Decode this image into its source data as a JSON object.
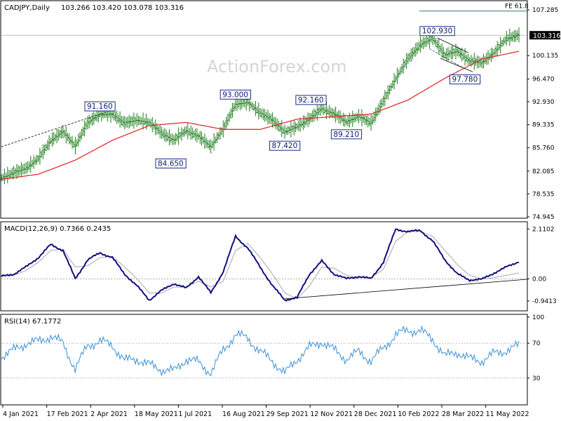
{
  "header": {
    "symbol_label": "CADJPY,Daily",
    "ohlc": "103.266 103.420 103.078 103.316"
  },
  "watermark": "ActionForex.com",
  "colors": {
    "bar": "#1a7a1a",
    "ma": "#e02020",
    "macd": "#10107e",
    "signal": "#a8a8a8",
    "rsi": "#3a8fd8",
    "label_border": "#1a2a8a",
    "price_tag_bg": "#000000"
  },
  "chart_data": [
    {
      "type": "line",
      "title": "CADJPY,Daily",
      "y_axis_ticks": [
        "107.285",
        "103.316",
        "100.135",
        "96.470",
        "92.930",
        "89.335",
        "85.760",
        "82.085",
        "78.535",
        "74.945"
      ],
      "ylim": [
        74.945,
        107.285
      ],
      "x_axis_labels": [
        "4 Jan 2021",
        "17 Feb 2021",
        "2 Apr 2021",
        "18 May 2021",
        "1 Jul 2021",
        "16 Aug 2021",
        "29 Sep 2021",
        "12 Nov 2021",
        "28 Dec 2021",
        "10 Feb 2022",
        "28 Mar 2022",
        "11 May 2022"
      ],
      "series": [
        {
          "name": "Close",
          "x": [
            0,
            8,
            16,
            24,
            32,
            40,
            48,
            56,
            64,
            72,
            80,
            88,
            96,
            104,
            112,
            120,
            128,
            136,
            144,
            152,
            160,
            168,
            176,
            184,
            192,
            200,
            208,
            216,
            224,
            232,
            240,
            248,
            256,
            264,
            272,
            280,
            288,
            296,
            304,
            312,
            320,
            328,
            336
          ],
          "values": [
            81.0,
            81.8,
            82.5,
            84.0,
            86.8,
            88.2,
            86.0,
            89.6,
            91.0,
            90.9,
            89.6,
            90.0,
            89.7,
            88.0,
            86.9,
            88.4,
            87.5,
            85.9,
            88.6,
            92.5,
            92.8,
            91.2,
            90.0,
            88.2,
            89.0,
            90.2,
            91.8,
            91.0,
            89.8,
            90.6,
            89.6,
            93.0,
            96.5,
            99.6,
            101.8,
            102.8,
            100.2,
            100.8,
            99.3,
            99.0,
            100.6,
            102.8,
            103.316
          ]
        },
        {
          "name": "55-day MA",
          "x": [
            0,
            24,
            48,
            72,
            96,
            120,
            144,
            168,
            192,
            216,
            240,
            264,
            288,
            312,
            336
          ],
          "values": [
            80.8,
            81.6,
            83.8,
            86.9,
            89.2,
            89.7,
            88.6,
            88.6,
            90.2,
            90.6,
            91.0,
            93.2,
            96.6,
            99.6,
            100.8
          ]
        }
      ],
      "annotations": [
        {
          "label": "91.160",
          "x": 64,
          "value": 91.16
        },
        {
          "label": "84.650",
          "x": 110,
          "value": 84.65
        },
        {
          "label": "93.000",
          "x": 152,
          "value": 93.0
        },
        {
          "label": "87.420",
          "x": 184,
          "value": 87.42
        },
        {
          "label": "92.160",
          "x": 201,
          "value": 92.16
        },
        {
          "label": "89.210",
          "x": 224,
          "value": 89.21
        },
        {
          "label": "102.930",
          "x": 283,
          "value": 102.93
        },
        {
          "label": "97.780",
          "x": 301,
          "value": 97.78
        }
      ],
      "fe_label": "FE 61.8",
      "fe_level": 107.1,
      "last_price_label": "103.316",
      "last_price": 103.316
    },
    {
      "type": "line",
      "title": "MACD(12,26,9) 0.7366 0.2435",
      "y_axis_ticks": [
        "2.1102",
        "0.00",
        "-0.9413"
      ],
      "ylim": [
        -1.3,
        2.3
      ],
      "series": [
        {
          "name": "MACD",
          "x": [
            0,
            8,
            16,
            24,
            32,
            40,
            48,
            56,
            64,
            72,
            80,
            88,
            96,
            104,
            112,
            120,
            128,
            136,
            144,
            152,
            160,
            168,
            176,
            184,
            192,
            200,
            208,
            216,
            224,
            232,
            240,
            248,
            256,
            264,
            272,
            280,
            288,
            296,
            304,
            312,
            320,
            328,
            336
          ],
          "values": [
            0.1,
            0.2,
            0.5,
            0.9,
            1.45,
            1.2,
            0.0,
            0.8,
            1.1,
            0.9,
            0.2,
            -0.3,
            -0.9,
            -0.5,
            -0.2,
            -0.4,
            0.1,
            -0.6,
            0.3,
            1.8,
            1.3,
            0.5,
            -0.3,
            -0.9,
            -0.8,
            0.2,
            0.75,
            0.2,
            0.0,
            0.1,
            0.0,
            0.7,
            2.1,
            2.0,
            2.05,
            1.6,
            0.8,
            0.2,
            -0.05,
            -0.02,
            0.25,
            0.5,
            0.7366
          ]
        },
        {
          "name": "Signal",
          "x": [
            0,
            8,
            16,
            24,
            32,
            40,
            48,
            56,
            64,
            72,
            80,
            88,
            96,
            104,
            112,
            120,
            128,
            136,
            144,
            152,
            160,
            168,
            176,
            184,
            192,
            200,
            208,
            216,
            224,
            232,
            240,
            248,
            256,
            264,
            272,
            280,
            288,
            296,
            304,
            312,
            320,
            328,
            336
          ],
          "values": [
            0.1,
            0.15,
            0.35,
            0.7,
            1.2,
            1.25,
            0.5,
            0.55,
            0.9,
            0.95,
            0.5,
            0.0,
            -0.6,
            -0.6,
            -0.35,
            -0.35,
            -0.1,
            -0.35,
            -0.1,
            1.2,
            1.5,
            0.9,
            0.2,
            -0.6,
            -0.85,
            -0.3,
            0.5,
            0.45,
            0.15,
            0.05,
            0.05,
            0.4,
            1.6,
            2.0,
            2.0,
            1.8,
            1.2,
            0.6,
            0.15,
            -0.02,
            0.05,
            0.15,
            0.2435
          ]
        }
      ]
    },
    {
      "type": "line",
      "title": "RSI(14) 67.1772",
      "y_axis_ticks": [
        "100",
        "70",
        "30"
      ],
      "ylim": [
        0,
        100
      ],
      "series": [
        {
          "name": "RSI",
          "x": [
            0,
            8,
            16,
            24,
            32,
            40,
            48,
            56,
            64,
            72,
            80,
            88,
            96,
            104,
            112,
            120,
            128,
            136,
            144,
            152,
            160,
            168,
            176,
            184,
            192,
            200,
            208,
            216,
            224,
            232,
            240,
            248,
            256,
            264,
            272,
            280,
            288,
            296,
            304,
            312,
            320,
            328,
            336
          ],
          "values": [
            55,
            62,
            70,
            72,
            78,
            70,
            40,
            68,
            72,
            68,
            50,
            52,
            45,
            40,
            38,
            52,
            48,
            36,
            62,
            80,
            76,
            60,
            50,
            35,
            52,
            65,
            72,
            62,
            52,
            60,
            50,
            64,
            80,
            85,
            84,
            75,
            55,
            60,
            52,
            50,
            58,
            62,
            67.1772
          ]
        }
      ]
    }
  ]
}
